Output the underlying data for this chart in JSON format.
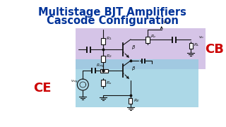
{
  "title_line1": "Multistage BJT Amplifiers",
  "title_line2": "Cascode Configuration",
  "title_color": "#003399",
  "bg_color": "#ffffff",
  "cb_label": "CB",
  "ce_label": "CE",
  "cb_label_color": "#cc0000",
  "ce_label_color": "#cc0000",
  "cb_box_color": "#c8b0e0",
  "ce_box_color": "#90cce0",
  "figsize": [
    3.2,
    1.8
  ],
  "dpi": 100,
  "lc": "#111111",
  "lw": 0.8
}
